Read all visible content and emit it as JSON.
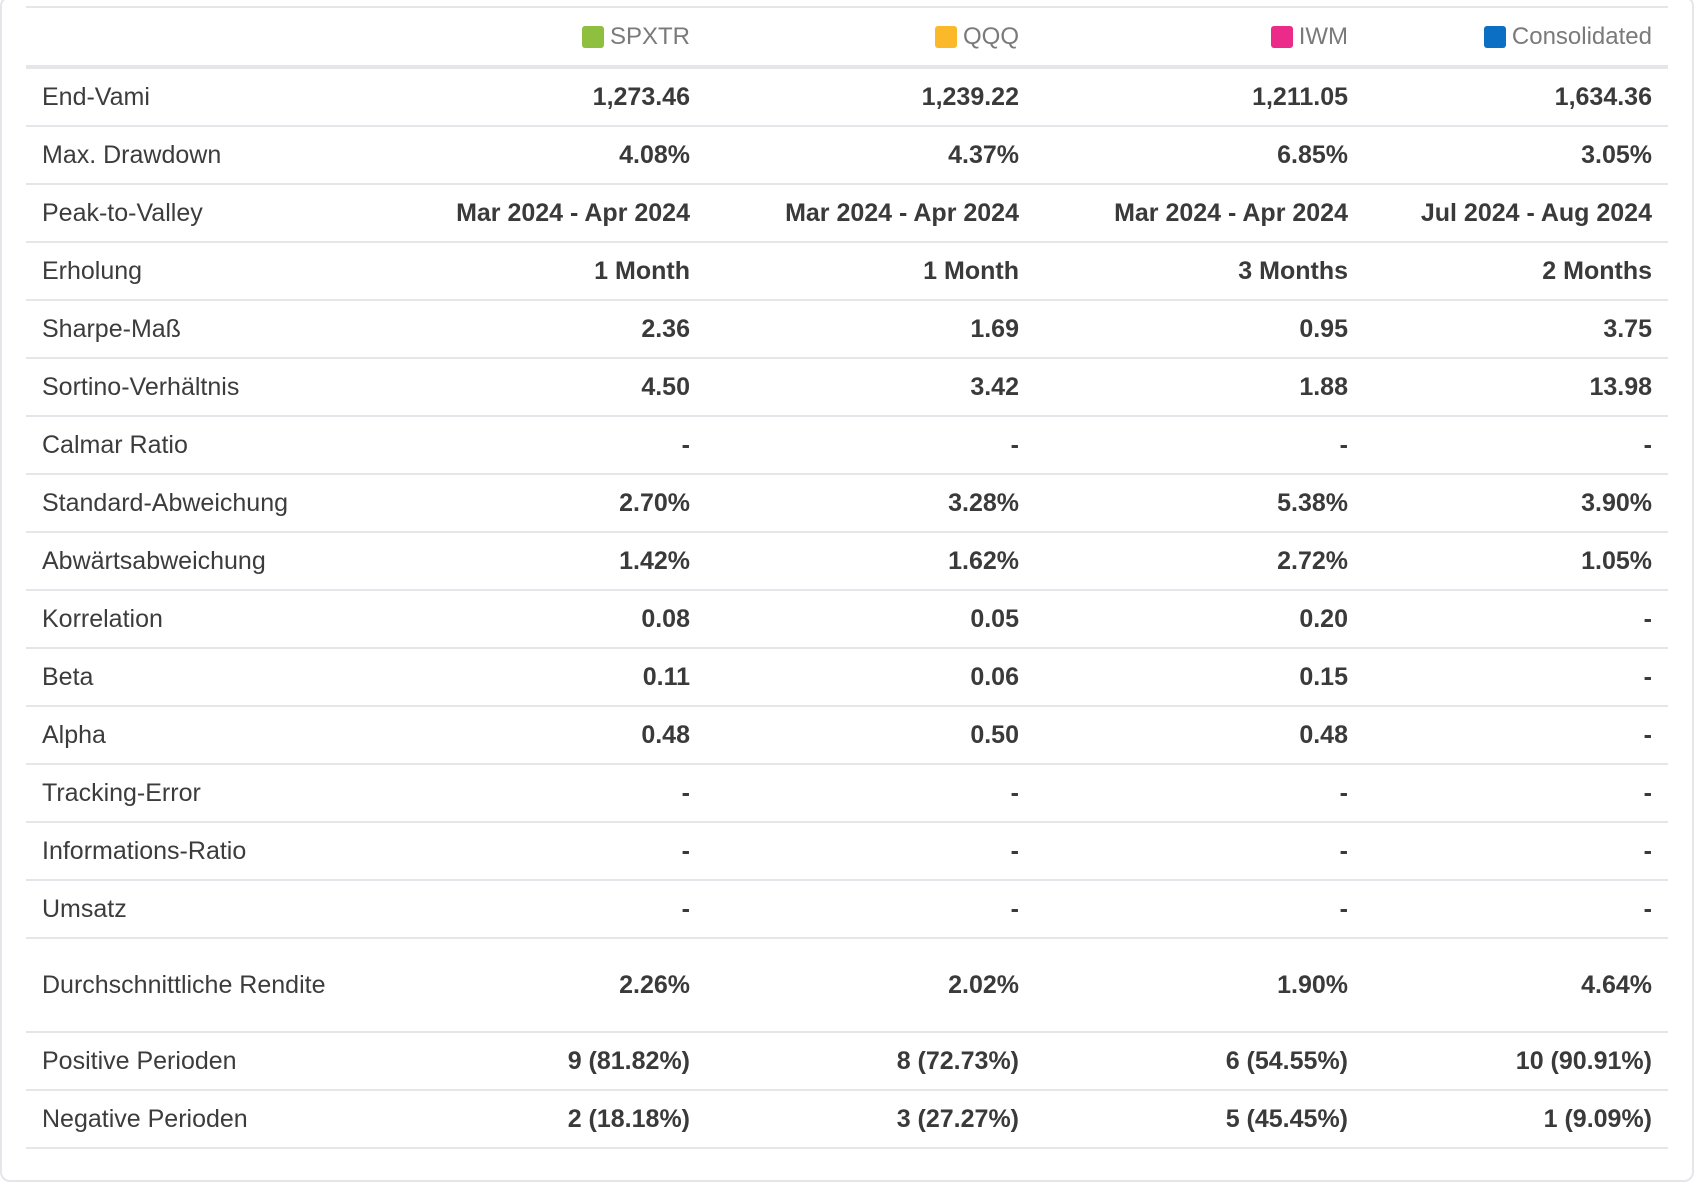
{
  "series": [
    {
      "name": "SPXTR",
      "color": "#8fbf3f"
    },
    {
      "name": "QQQ",
      "color": "#fbb829"
    },
    {
      "name": "IWM",
      "color": "#ec2a8a"
    },
    {
      "name": "Consolidated",
      "color": "#0b6fc4"
    }
  ],
  "rows": [
    {
      "label": "End-Vami",
      "values": [
        "1,273.46",
        "1,239.22",
        "1,211.05",
        "1,634.36"
      ]
    },
    {
      "label": "Max. Drawdown",
      "values": [
        "4.08%",
        "4.37%",
        "6.85%",
        "3.05%"
      ]
    },
    {
      "label": "Peak-to-Valley",
      "values": [
        "Mar 2024 - Apr 2024",
        "Mar 2024 - Apr 2024",
        "Mar 2024 - Apr 2024",
        "Jul 2024 - Aug 2024"
      ]
    },
    {
      "label": "Erholung",
      "values": [
        "1 Month",
        "1 Month",
        "3 Months",
        "2 Months"
      ]
    },
    {
      "label": "Sharpe-Maß",
      "values": [
        "2.36",
        "1.69",
        "0.95",
        "3.75"
      ]
    },
    {
      "label": "Sortino-Verhältnis",
      "values": [
        "4.50",
        "3.42",
        "1.88",
        "13.98"
      ]
    },
    {
      "label": "Calmar Ratio",
      "values": [
        "-",
        "-",
        "-",
        "-"
      ]
    },
    {
      "label": "Standard-Abweichung",
      "values": [
        "2.70%",
        "3.28%",
        "5.38%",
        "3.90%"
      ]
    },
    {
      "label": "Abwärtsabweichung",
      "values": [
        "1.42%",
        "1.62%",
        "2.72%",
        "1.05%"
      ]
    },
    {
      "label": "Korrelation",
      "values": [
        "0.08",
        "0.05",
        "0.20",
        "-"
      ]
    },
    {
      "label": "Beta",
      "values": [
        "0.11",
        "0.06",
        "0.15",
        "-"
      ]
    },
    {
      "label": "Alpha",
      "values": [
        "0.48",
        "0.50",
        "0.48",
        "-"
      ]
    },
    {
      "label": "Tracking-Error",
      "values": [
        "-",
        "-",
        "-",
        "-"
      ]
    },
    {
      "label": "Informations-Ratio",
      "values": [
        "-",
        "-",
        "-",
        "-"
      ]
    },
    {
      "label": "Umsatz",
      "values": [
        "-",
        "-",
        "-",
        "-"
      ]
    },
    {
      "label": "Durchschnittliche Rendite",
      "values": [
        "2.26%",
        "2.02%",
        "1.90%",
        "4.64%"
      ]
    },
    {
      "label": "Positive Perioden",
      "values": [
        "9 (81.82%)",
        "8 (72.73%)",
        "6 (54.55%)",
        "10 (90.91%)"
      ]
    },
    {
      "label": "Negative Perioden",
      "values": [
        "2 (18.18%)",
        "3 (27.27%)",
        "5 (45.45%)",
        "1 (9.09%)"
      ]
    }
  ]
}
